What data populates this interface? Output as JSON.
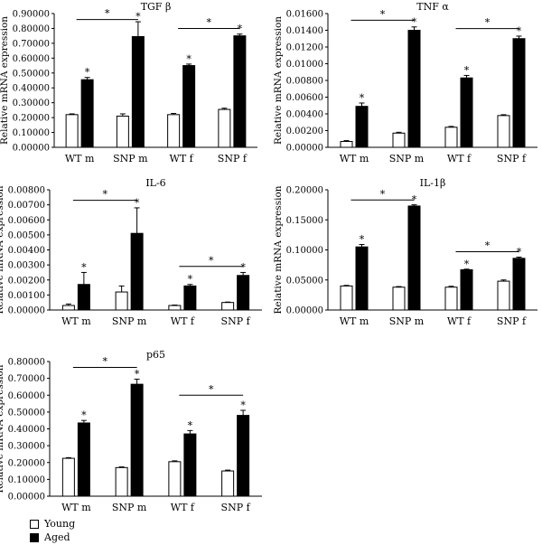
{
  "chart_data": [
    {
      "type": "bar",
      "title": "TGF β",
      "ylabel": "Relative mRNA expression",
      "categories": [
        "WT m",
        "SNP m",
        "WT f",
        "SNP f"
      ],
      "ylim": [
        0,
        0.9
      ],
      "ytick_labels": [
        "0.00000",
        "0.10000",
        "0.20000",
        "0.30000",
        "0.40000",
        "0.50000",
        "0.60000",
        "0.70000",
        "0.80000",
        "0.90000"
      ],
      "series": [
        {
          "name": "Young",
          "color": "#ffffff",
          "values": [
            0.22,
            0.21,
            0.22,
            0.255
          ],
          "errors": [
            0.005,
            0.015,
            0.008,
            0.008
          ]
        },
        {
          "name": "Aged",
          "color": "#000000",
          "values": [
            0.455,
            0.745,
            0.55,
            0.75
          ],
          "errors": [
            0.015,
            0.1,
            0.01,
            0.012
          ]
        }
      ],
      "stars": [
        [],
        [],
        [],
        []
      ],
      "brackets": [
        {
          "from": 0,
          "to": 1,
          "label": "*",
          "y": 0.86
        },
        {
          "from": 2,
          "to": 3,
          "label": "*",
          "y": 0.8
        }
      ]
    },
    {
      "type": "bar",
      "title": "TNF α",
      "ylabel": "Relative mRNA expression",
      "categories": [
        "WT m",
        "SNP m",
        "WT f",
        "SNP f"
      ],
      "ylim": [
        0,
        0.016
      ],
      "ytick_labels": [
        "0.00000",
        "0.00200",
        "0.00400",
        "0.00600",
        "0.00800",
        "0.01000",
        "0.01200",
        "0.01400",
        "0.01600"
      ],
      "series": [
        {
          "name": "Young",
          "color": "#ffffff",
          "values": [
            0.0007,
            0.0017,
            0.0024,
            0.0038
          ],
          "errors": [
            0.0001,
            0.0001,
            0.0001,
            0.0001
          ]
        },
        {
          "name": "Aged",
          "color": "#000000",
          "values": [
            0.0049,
            0.014,
            0.0083,
            0.013
          ],
          "errors": [
            0.0004,
            0.0004,
            0.0003,
            0.0003
          ]
        }
      ],
      "brackets": [
        {
          "from": 0,
          "to": 1,
          "label": "*",
          "y": 0.0152
        },
        {
          "from": 2,
          "to": 3,
          "label": "*",
          "y": 0.0142
        }
      ]
    },
    {
      "type": "bar",
      "title": "IL-6",
      "ylabel": "Relative mRNA expression",
      "categories": [
        "WT m",
        "SNP m",
        "WT f",
        "SNP f"
      ],
      "ylim": [
        0,
        0.008
      ],
      "ytick_labels": [
        "0.00000",
        "0.00100",
        "0.00200",
        "0.00300",
        "0.00400",
        "0.00500",
        "0.00600",
        "0.00700",
        "0.00800"
      ],
      "series": [
        {
          "name": "Young",
          "color": "#ffffff",
          "values": [
            0.0003,
            0.0012,
            0.0003,
            0.0005
          ],
          "errors": [
            0.0001,
            0.0004,
            3e-05,
            3e-05
          ]
        },
        {
          "name": "Aged",
          "color": "#000000",
          "values": [
            0.0017,
            0.0051,
            0.0016,
            0.0023
          ],
          "errors": [
            0.0008,
            0.0017,
            0.0001,
            0.0002
          ]
        }
      ],
      "brackets": [
        {
          "from": 0,
          "to": 1,
          "label": "*",
          "y": 0.0073
        },
        {
          "from": 2,
          "to": 3,
          "label": "*",
          "y": 0.0029
        }
      ]
    },
    {
      "type": "bar",
      "title": "IL-1β",
      "ylabel": "Relative mRNA expression",
      "categories": [
        "WT m",
        "SNP m",
        "WT f",
        "SNP f"
      ],
      "ylim": [
        0,
        0.2
      ],
      "ytick_labels": [
        "0.00000",
        "0.05000",
        "0.10000",
        "0.15000",
        "0.20000"
      ],
      "series": [
        {
          "name": "Young",
          "color": "#ffffff",
          "values": [
            0.04,
            0.038,
            0.038,
            0.048
          ],
          "errors": [
            0.001,
            0.001,
            0.0015,
            0.002
          ]
        },
        {
          "name": "Aged",
          "color": "#000000",
          "values": [
            0.105,
            0.173,
            0.067,
            0.086
          ],
          "errors": [
            0.004,
            0.002,
            0.001,
            0.002
          ]
        }
      ],
      "brackets": [
        {
          "from": 0,
          "to": 1,
          "label": "*",
          "y": 0.183
        },
        {
          "from": 2,
          "to": 3,
          "label": "*",
          "y": 0.097
        }
      ]
    },
    {
      "type": "bar",
      "title": "p65",
      "ylabel": "Relative mRNA expression",
      "categories": [
        "WT m",
        "SNP m",
        "WT f",
        "SNP f"
      ],
      "ylim": [
        0,
        0.8
      ],
      "ytick_labels": [
        "0.00000",
        "0.10000",
        "0.20000",
        "0.30000",
        "0.40000",
        "0.50000",
        "0.60000",
        "0.70000",
        "0.80000"
      ],
      "series": [
        {
          "name": "Young",
          "color": "#ffffff",
          "values": [
            0.225,
            0.17,
            0.205,
            0.15
          ],
          "errors": [
            0.004,
            0.004,
            0.005,
            0.005
          ]
        },
        {
          "name": "Aged",
          "color": "#000000",
          "values": [
            0.435,
            0.665,
            0.37,
            0.48
          ],
          "errors": [
            0.015,
            0.03,
            0.02,
            0.03
          ]
        }
      ],
      "brackets": [
        {
          "from": 0,
          "to": 1,
          "label": "*",
          "y": 0.765
        },
        {
          "from": 2,
          "to": 3,
          "label": "*",
          "y": 0.6
        }
      ]
    }
  ],
  "legend": [
    {
      "label": "Young",
      "color": "#ffffff"
    },
    {
      "label": "Aged",
      "color": "#000000"
    }
  ],
  "star_label": "*"
}
